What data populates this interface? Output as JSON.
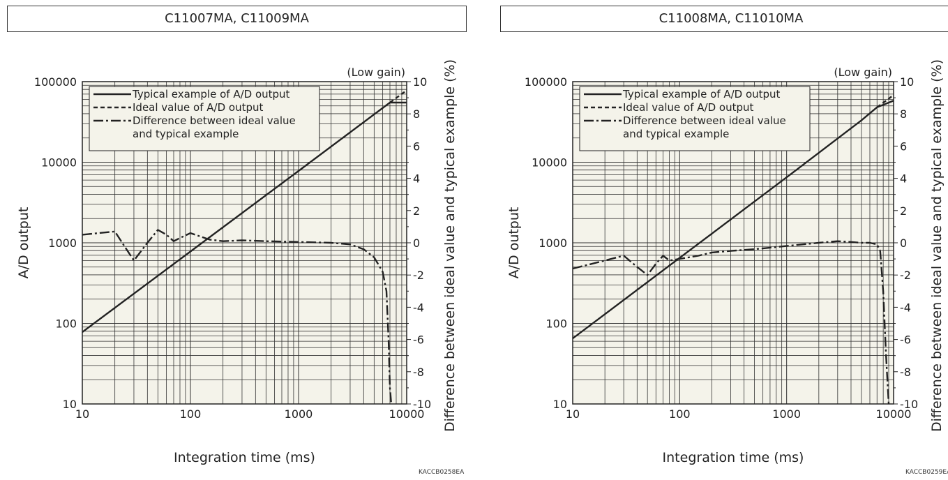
{
  "chart_data": [
    {
      "type": "line",
      "title": "C11007MA, C11009MA",
      "gain_note": "(Low gain)",
      "xlabel": "Integration time (ms)",
      "ylabel": "A/D output",
      "y2label": "Difference between ideal value and typical example (%)",
      "x_scale": "log",
      "xlim": [
        10,
        10000
      ],
      "y_scale": "log",
      "ylim": [
        10,
        100000
      ],
      "y2lim": [
        -10,
        10
      ],
      "x_ticks": [
        "10",
        "100",
        "1000",
        "10000"
      ],
      "y_ticks": [
        "10",
        "100",
        "1000",
        "10000",
        "100000"
      ],
      "y2_ticks": [
        "10",
        "8",
        "6",
        "4",
        "2",
        "0",
        "-2",
        "-4",
        "-6",
        "-8",
        "-10"
      ],
      "grid": true,
      "legend_position": "top-left",
      "legend": [
        "Typical example of A/D output",
        "Ideal value of A/D output",
        "Difference between ideal value",
        "and typical example"
      ],
      "code": "KACCB0258EA",
      "series": [
        {
          "name": "Typical example of A/D output",
          "style": "solid",
          "axis": "left",
          "x": [
            10,
            100,
            1000,
            7000,
            10000
          ],
          "y": [
            78,
            780,
            7800,
            55000,
            55000
          ]
        },
        {
          "name": "Ideal value of A/D output",
          "style": "dashed",
          "axis": "left",
          "x": [
            7000,
            10000
          ],
          "y": [
            55000,
            78000
          ]
        },
        {
          "name": "Difference between ideal value and typical example",
          "style": "dashdot",
          "axis": "right",
          "x": [
            10,
            20,
            25,
            30,
            40,
            50,
            60,
            70,
            80,
            100,
            150,
            200,
            300,
            500,
            1000,
            2000,
            3000,
            4000,
            5000,
            6000,
            6500,
            6800,
            7000,
            7200
          ],
          "y": [
            0.5,
            0.7,
            -0.3,
            -1.1,
            0.0,
            0.8,
            0.5,
            0.1,
            0.3,
            0.6,
            0.2,
            0.1,
            0.15,
            0.1,
            0.05,
            0.0,
            -0.1,
            -0.4,
            -0.9,
            -1.8,
            -3.0,
            -6.0,
            -9.0,
            -10.0
          ]
        }
      ]
    },
    {
      "type": "line",
      "title": "C11008MA, C11010MA",
      "gain_note": "(Low gain)",
      "xlabel": "Integration time (ms)",
      "ylabel": "A/D output",
      "y2label": "Difference between ideal value and typical example (%)",
      "x_scale": "log",
      "xlim": [
        10,
        10000
      ],
      "y_scale": "log",
      "ylim": [
        10,
        100000
      ],
      "y2lim": [
        -10,
        10
      ],
      "x_ticks": [
        "10",
        "100",
        "1000",
        "10000"
      ],
      "y_ticks": [
        "10",
        "100",
        "1000",
        "10000",
        "100000"
      ],
      "y2_ticks": [
        "10",
        "8",
        "6",
        "4",
        "2",
        "0",
        "-2",
        "-4",
        "-6",
        "-8",
        "-10"
      ],
      "grid": true,
      "legend_position": "top-left",
      "legend": [
        "Typical example of A/D output",
        "Ideal value of A/D output",
        "Difference between ideal value",
        "and typical example"
      ],
      "code": "KACCB0259EA",
      "series": [
        {
          "name": "Typical example of A/D output",
          "style": "solid",
          "axis": "left",
          "x": [
            10,
            100,
            1000,
            5000,
            7000,
            10000
          ],
          "y": [
            65,
            650,
            6500,
            33000,
            48000,
            58000
          ]
        },
        {
          "name": "Ideal value of A/D output",
          "style": "dashed",
          "axis": "left",
          "x": [
            7000,
            10000
          ],
          "y": [
            48000,
            68000
          ]
        },
        {
          "name": "Difference between ideal value and typical example",
          "style": "dashdot",
          "axis": "right",
          "x": [
            10,
            20,
            30,
            40,
            50,
            60,
            70,
            80,
            100,
            150,
            200,
            300,
            500,
            1000,
            2000,
            3000,
            4000,
            5000,
            6000,
            7000,
            7500,
            8000,
            8500,
            9000
          ],
          "y": [
            -1.6,
            -1.1,
            -0.8,
            -1.5,
            -2.0,
            -1.3,
            -0.8,
            -1.1,
            -1.0,
            -0.8,
            -0.6,
            -0.5,
            -0.4,
            -0.2,
            0.0,
            0.1,
            0.05,
            0.0,
            0.0,
            -0.1,
            -0.5,
            -3.0,
            -7.0,
            -10.0
          ]
        }
      ]
    }
  ]
}
